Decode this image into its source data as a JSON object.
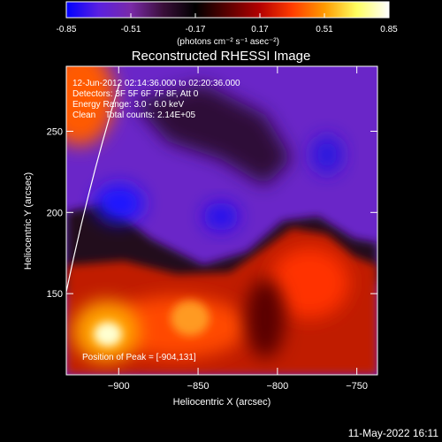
{
  "colorbar": {
    "ticks": [
      "-0.85",
      "-0.51",
      "-0.17",
      "0.17",
      "0.51",
      "0.85"
    ],
    "min": -0.85,
    "max": 0.85,
    "unit_label": "(photons cm⁻² s⁻¹ asec⁻²)",
    "palette": [
      "#0000ff",
      "#5a20e0",
      "#7a2aa8",
      "#3a0f3a",
      "#000000",
      "#5a0000",
      "#b40000",
      "#ff3c00",
      "#ff9a00",
      "#ffff60",
      "#ffffff"
    ]
  },
  "chart_data": {
    "type": "heatmap",
    "title": "Reconstructed RHESSI Image",
    "xlabel": "Heliocentric X (arcsec)",
    "ylabel": "Heliocentric Y (arcsec)",
    "xlim": [
      -933,
      -737
    ],
    "ylim": [
      100,
      290
    ],
    "x_ticks": [
      -900,
      -850,
      -800,
      -750
    ],
    "y_ticks": [
      150,
      200,
      250
    ],
    "x_tick_labels": [
      "−900",
      "−850",
      "−800",
      "−750"
    ],
    "y_tick_labels": [
      "150",
      "200",
      "250"
    ],
    "annotations": [
      "12-Jun-2012 02:14:36.000 to 02:20:36.000",
      "Detectors: 3F 5F 6F 7F 8F, Att 0",
      "Energy Range: 3.0 - 6.0 keV",
      "Clean    Total counts: 2.14E+05"
    ],
    "peak_label": "Position of Peak = [-904,131]",
    "peak": [
      -904,
      131
    ]
  },
  "footer_date": "11-May-2022 16:11"
}
